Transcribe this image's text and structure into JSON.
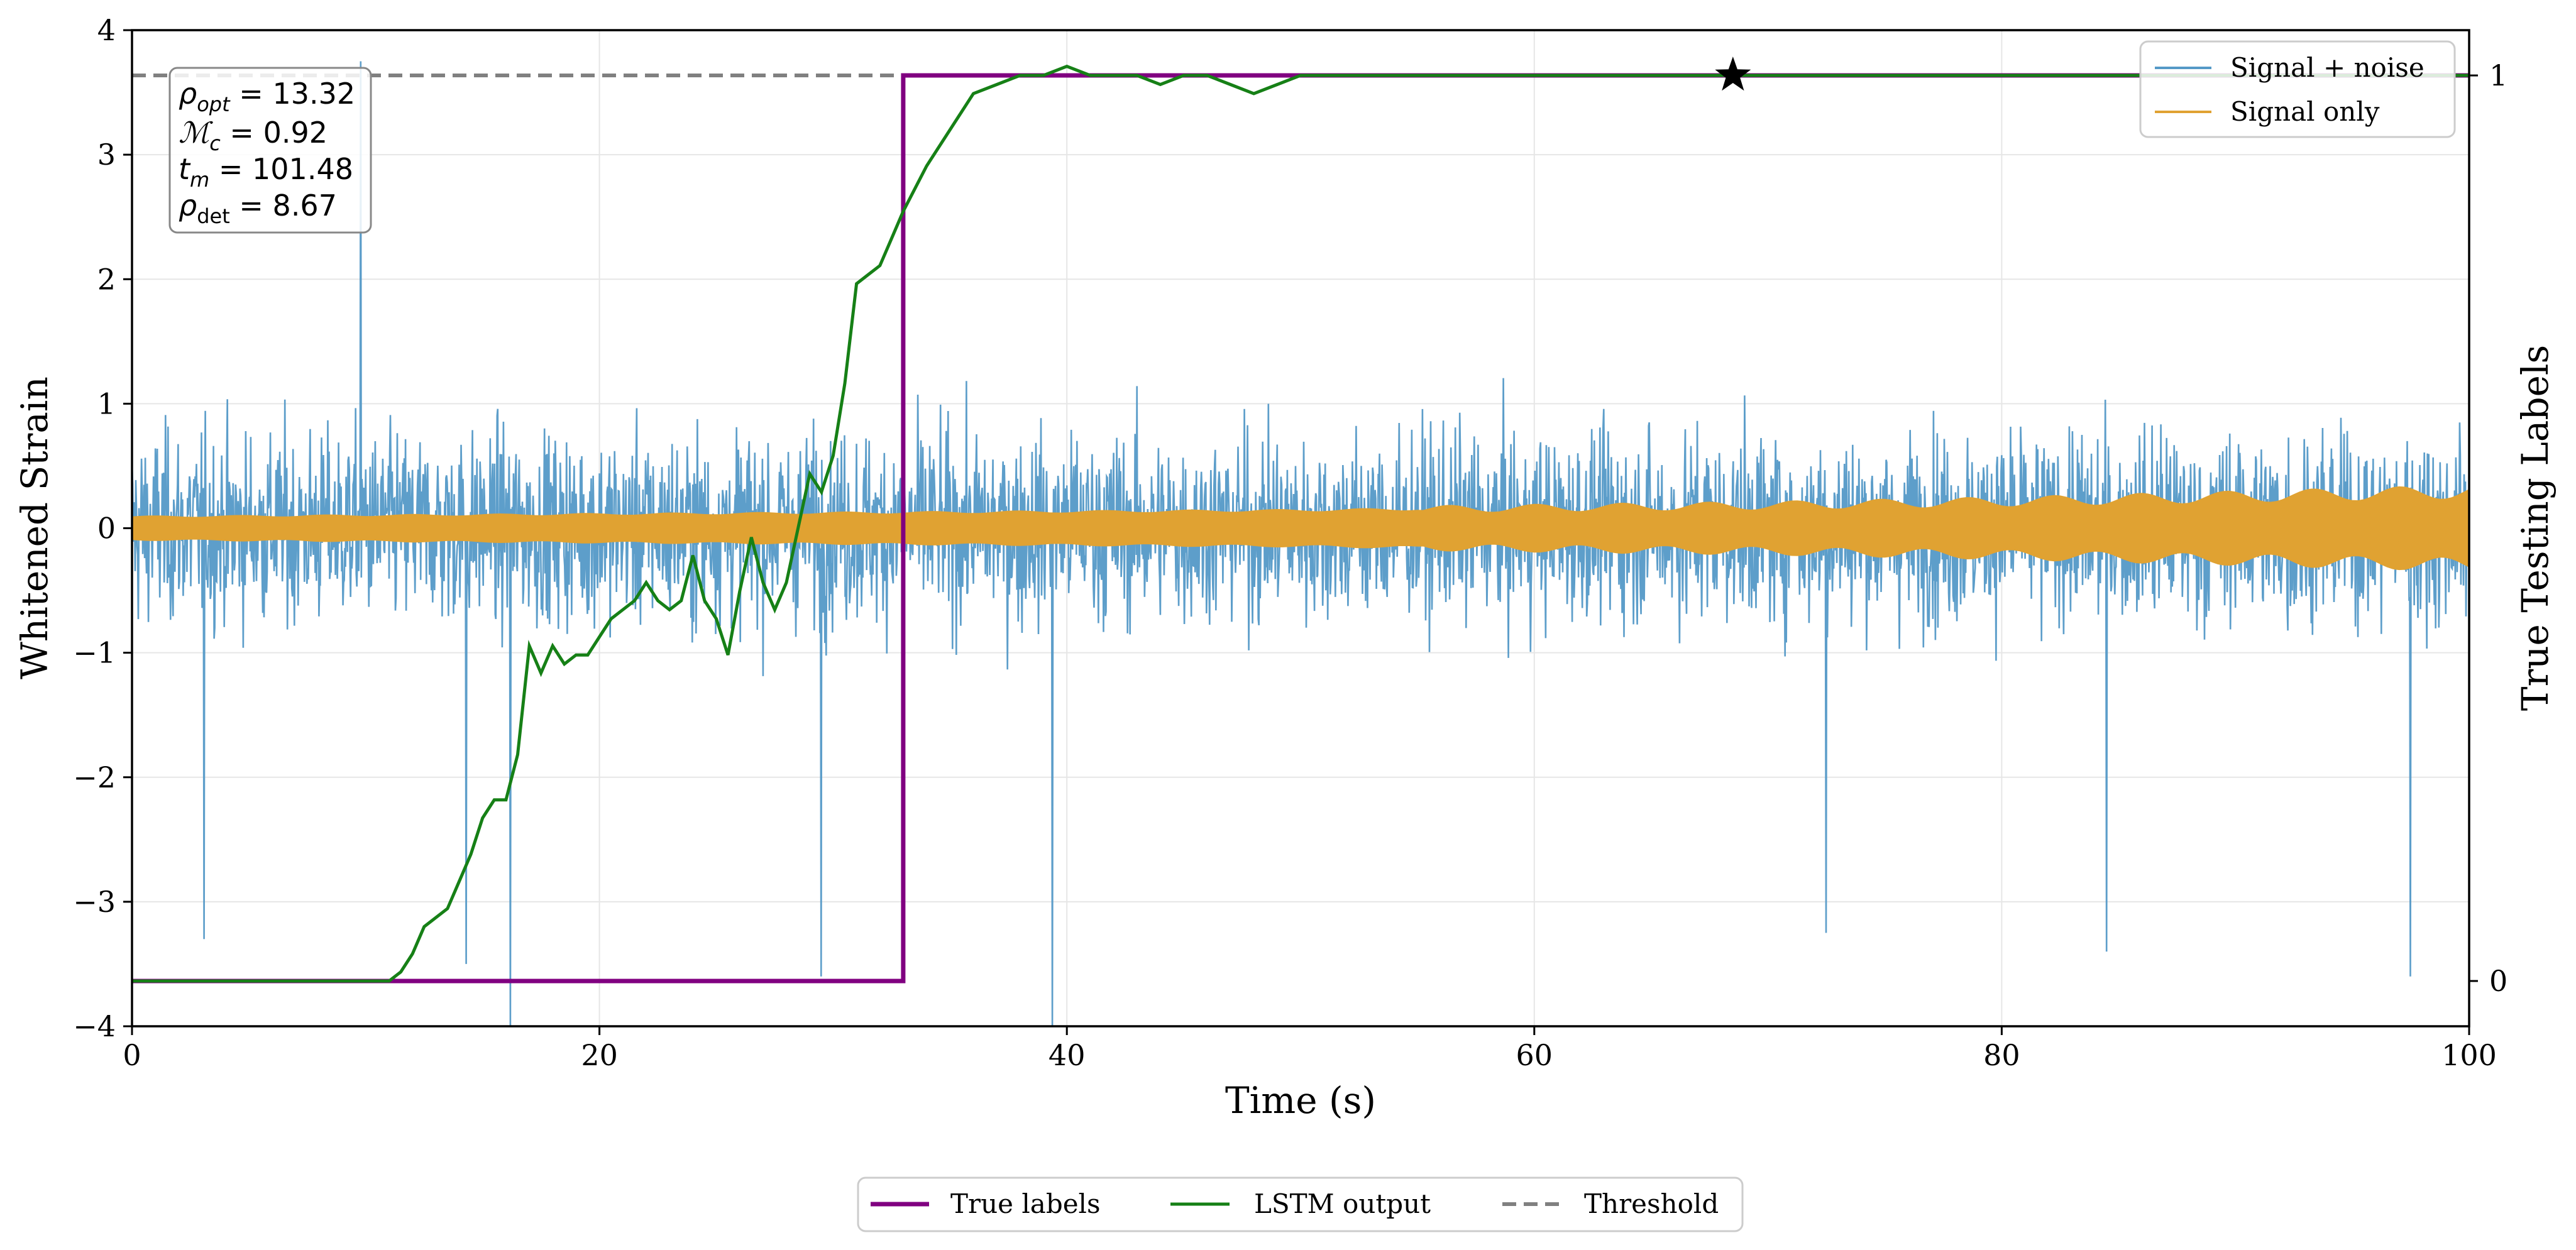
{
  "chart_data": {
    "type": "line",
    "xlabel": "Time (s)",
    "ylabel": "Whitened Strain",
    "y2label": "True Testing Labels",
    "xlim": [
      0,
      100
    ],
    "ylim": [
      -4,
      4
    ],
    "y2lim": [
      -0.05,
      1.05
    ],
    "xticks": [
      0,
      20,
      40,
      60,
      80,
      100
    ],
    "yticks": [
      -4,
      -3,
      -2,
      -1,
      0,
      1,
      2,
      3,
      4
    ],
    "y2ticks": [
      0,
      1
    ],
    "xtick_labels": [
      "0",
      "20",
      "40",
      "60",
      "80",
      "100"
    ],
    "ytick_labels": [
      "−4",
      "−3",
      "−2",
      "−1",
      "0",
      "1",
      "2",
      "3",
      "4"
    ],
    "y2tick_labels": [
      "0",
      "1"
    ],
    "grid": true,
    "annotation": {
      "rho_opt": "13.32",
      "mc": "0.92",
      "tm": "101.48",
      "rho_det": "8.67"
    },
    "legend_top_right": [
      "Signal + noise",
      "Signal only"
    ],
    "legend_bottom": [
      "True labels",
      "LSTM output",
      "Threshold"
    ],
    "colors": {
      "noise": "#5499c7",
      "signal": "#e0a232",
      "true_labels": "#800080",
      "lstm": "#168016",
      "threshold": "#808080",
      "star": "#000000"
    },
    "signal_envelope": {
      "x": [
        0,
        10,
        20,
        30,
        40,
        50,
        60,
        70,
        80,
        90,
        100
      ],
      "amplitude": [
        0.09,
        0.1,
        0.11,
        0.12,
        0.13,
        0.14,
        0.16,
        0.18,
        0.21,
        0.25,
        0.29
      ]
    },
    "noise_sigma": 0.75,
    "noise_spikes": [
      {
        "x": 9.8,
        "y": 3.75
      },
      {
        "x": 16.2,
        "y": -4.0
      },
      {
        "x": 39.4,
        "y": -4.0
      },
      {
        "x": 29.5,
        "y": -3.6
      },
      {
        "x": 72.5,
        "y": -3.25
      },
      {
        "x": 84.5,
        "y": -3.4
      },
      {
        "x": 97.5,
        "y": -3.6
      },
      {
        "x": 3.1,
        "y": -3.3
      },
      {
        "x": 14.3,
        "y": -3.5
      }
    ],
    "true_labels": {
      "x": [
        0,
        33.0,
        33.0,
        100
      ],
      "y": [
        0,
        0,
        1,
        1
      ]
    },
    "lstm_output": {
      "x": [
        0,
        11.0,
        11.5,
        12.0,
        12.5,
        13.5,
        14.0,
        14.5,
        15.0,
        15.5,
        16.0,
        16.5,
        17.0,
        17.5,
        18.0,
        18.5,
        19.0,
        19.5,
        20.0,
        20.5,
        21.0,
        21.5,
        22.0,
        22.5,
        23.0,
        23.5,
        24.0,
        24.5,
        25.0,
        25.5,
        26.0,
        26.5,
        27.0,
        27.5,
        28.0,
        28.5,
        29.0,
        29.5,
        30.0,
        30.5,
        31.0,
        31.5,
        32.0,
        32.5,
        33.0,
        34.0,
        35.0,
        36.0,
        37.0,
        38.0,
        39.0,
        40.0,
        41.0,
        42.0,
        43.0,
        44.0,
        45.0,
        46.0,
        47.0,
        48.0,
        49.0,
        50.0,
        52.0,
        55.0,
        60.0,
        65.0,
        70.0,
        80.0,
        90.0,
        100.0
      ],
      "y": [
        0.0,
        0.0,
        0.01,
        0.03,
        0.06,
        0.08,
        0.11,
        0.14,
        0.18,
        0.2,
        0.2,
        0.25,
        0.37,
        0.34,
        0.37,
        0.35,
        0.36,
        0.36,
        0.38,
        0.4,
        0.41,
        0.42,
        0.44,
        0.42,
        0.41,
        0.42,
        0.47,
        0.42,
        0.4,
        0.36,
        0.43,
        0.49,
        0.44,
        0.41,
        0.44,
        0.5,
        0.56,
        0.54,
        0.58,
        0.66,
        0.77,
        0.78,
        0.79,
        0.82,
        0.85,
        0.9,
        0.94,
        0.98,
        0.99,
        1.0,
        1.0,
        1.01,
        1.0,
        1.0,
        1.0,
        0.99,
        1.0,
        1.0,
        0.99,
        0.98,
        0.99,
        1.0,
        1.0,
        1.0,
        1.0,
        1.0,
        1.0,
        1.0,
        1.0,
        1.0
      ]
    },
    "threshold": 1.0,
    "detection_marker": {
      "x": 68.5,
      "y": 1.0
    }
  }
}
